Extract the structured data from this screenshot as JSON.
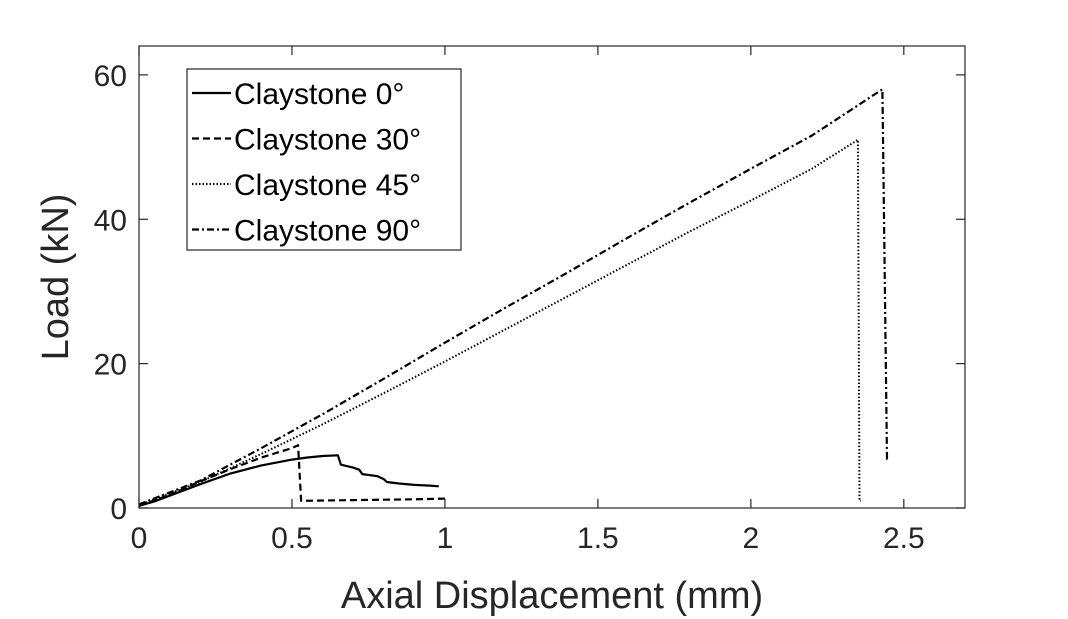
{
  "chart_data": {
    "type": "line",
    "title": "",
    "xlabel": "Axial Displacement (mm)",
    "ylabel": "Load (kN)",
    "xlim": [
      0,
      2.7
    ],
    "ylim": [
      0,
      64
    ],
    "xticks": [
      0,
      0.5,
      1,
      1.5,
      2,
      2.5
    ],
    "xtick_labels": [
      "0",
      "0.5",
      "1",
      "1.5",
      "2",
      "2.5"
    ],
    "yticks": [
      0,
      20,
      40,
      60
    ],
    "ytick_labels": [
      "0",
      "20",
      "40",
      "60"
    ],
    "grid": false,
    "legend_position": "top-left",
    "series": [
      {
        "name": "Claystone 0°",
        "style": "solid",
        "x": [
          0,
          0.05,
          0.1,
          0.15,
          0.2,
          0.3,
          0.4,
          0.5,
          0.55,
          0.6,
          0.65,
          0.66,
          0.7,
          0.72,
          0.73,
          0.78,
          0.8,
          0.81,
          0.85,
          0.9,
          0.95,
          0.98
        ],
        "y": [
          0.3,
          0.9,
          1.7,
          2.5,
          3.3,
          4.8,
          5.9,
          6.7,
          7.0,
          7.2,
          7.3,
          6.0,
          5.6,
          5.3,
          4.7,
          4.4,
          4.0,
          3.6,
          3.4,
          3.2,
          3.1,
          3.0
        ]
      },
      {
        "name": "Claystone 30°",
        "style": "dashed",
        "x": [
          0,
          0.1,
          0.2,
          0.3,
          0.4,
          0.5,
          0.52,
          0.53,
          0.54,
          0.7,
          0.9,
          1.0
        ],
        "y": [
          0.3,
          1.8,
          3.7,
          5.4,
          7.0,
          8.3,
          8.7,
          1.0,
          1.0,
          1.1,
          1.2,
          1.3
        ]
      },
      {
        "name": "Claystone 45°",
        "style": "dotted",
        "x": [
          0,
          0.2,
          0.4,
          0.6,
          0.8,
          1.0,
          1.2,
          1.4,
          1.6,
          1.8,
          2.0,
          2.2,
          2.35,
          2.355,
          2.36
        ],
        "y": [
          0.4,
          3.6,
          7.5,
          11.6,
          15.9,
          20.3,
          24.8,
          29.3,
          33.8,
          38.3,
          42.6,
          47.0,
          51.0,
          1.0,
          1.0
        ]
      },
      {
        "name": "Claystone 90°",
        "style": "dashdot",
        "x": [
          0,
          0.2,
          0.4,
          0.6,
          0.8,
          1.0,
          1.2,
          1.4,
          1.6,
          1.8,
          2.0,
          2.2,
          2.43,
          2.445,
          2.45
        ],
        "y": [
          0.5,
          3.8,
          8.3,
          13.0,
          17.9,
          22.9,
          27.8,
          32.6,
          37.5,
          42.3,
          47.0,
          51.6,
          58.0,
          6.8,
          7.0
        ]
      }
    ]
  }
}
